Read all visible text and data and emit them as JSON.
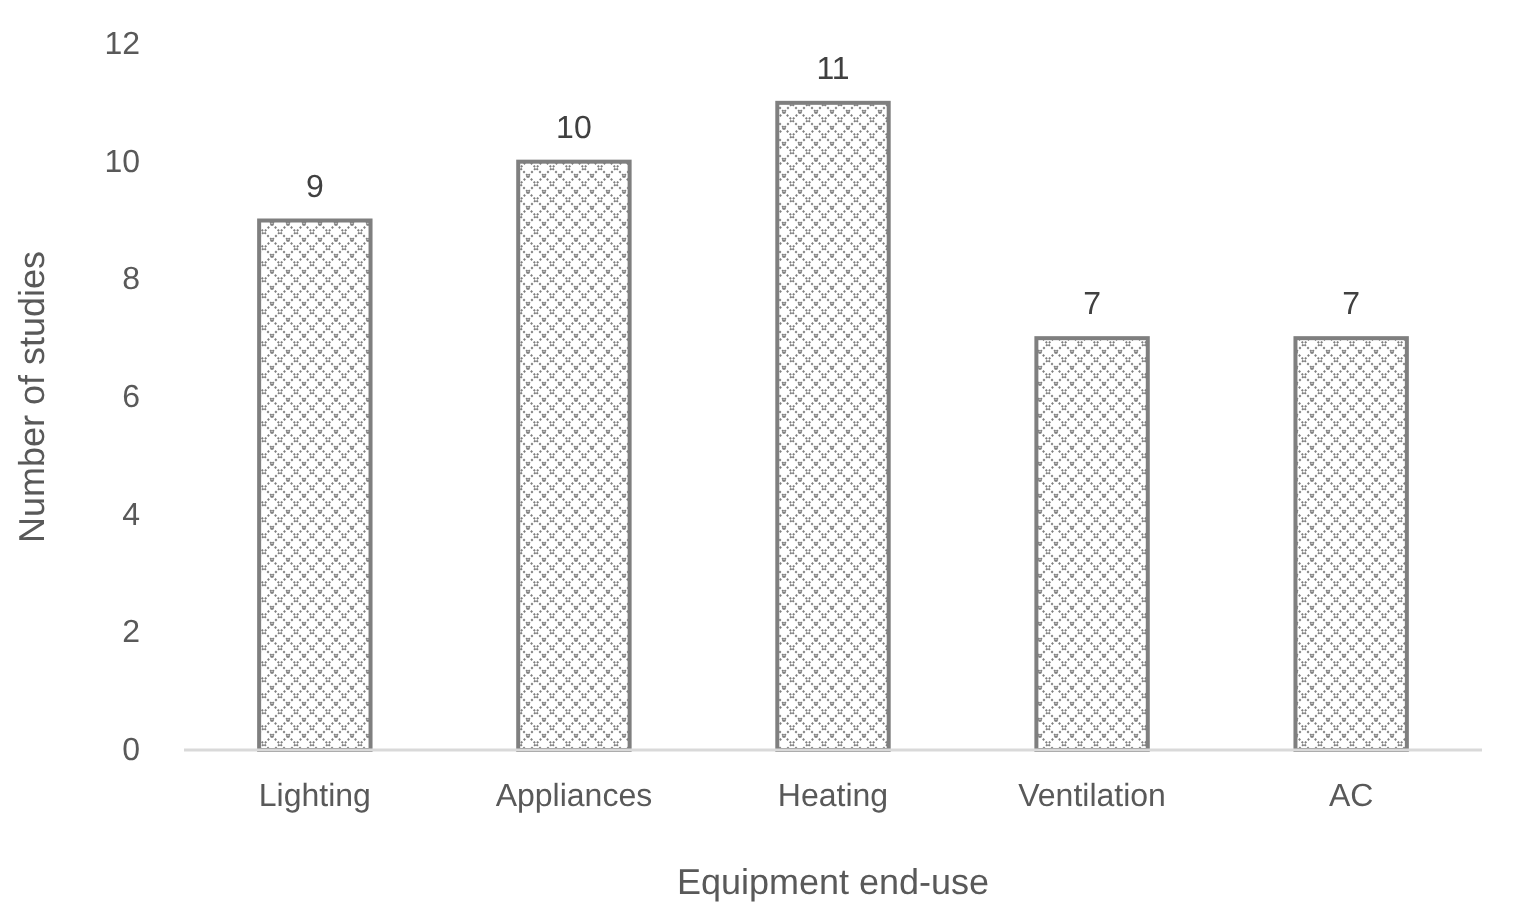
{
  "chart_data": {
    "type": "bar",
    "xlabel": "Equipment end-use",
    "ylabel": "Number of studies",
    "categories": [
      "Lighting",
      "Appliances",
      "Heating",
      "Ventilation",
      "AC"
    ],
    "values": [
      9,
      10,
      11,
      7,
      7
    ],
    "color": "#7f7f7f",
    "ylim": [
      0,
      12
    ],
    "yticks": [
      0,
      2,
      4,
      6,
      8,
      10,
      12
    ],
    "data_labels": true
  }
}
